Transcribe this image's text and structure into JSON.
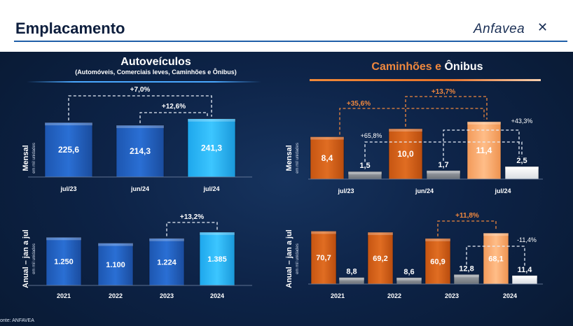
{
  "page": {
    "title": "Emplacamento",
    "logo": "Anfavea",
    "source": "onte: ANFAVEA"
  },
  "auto_panel": {
    "title": "Autoveículos",
    "subtitle": "(Automóveis, Comerciais leves, Caminhões e Ônibus)"
  },
  "cam_panel": {
    "title_part1": "Caminhões e",
    "title_part2": "Ônibus"
  },
  "row_labels": {
    "mensal": "Mensal",
    "anual": "Anual – jan a jul",
    "unit": "em mil unidades"
  },
  "colors": {
    "blue_dark": "#1f5fbf",
    "blue_light": "#22b8f5",
    "orange_dark": "#d7641c",
    "orange_light": "#f7ad74",
    "gray": "#8a8f96",
    "white_bar": "#f4f4f4"
  },
  "chart_data": [
    {
      "id": "auto_mensal",
      "type": "bar",
      "categories": [
        "jul/23",
        "jun/24",
        "jul/24"
      ],
      "values": [
        225.6,
        214.3,
        241.3
      ],
      "value_labels": [
        "225,6",
        "214,3",
        "241,3"
      ],
      "annotations": [
        "+7,0%",
        "+12,6%"
      ],
      "ylabel": "Mensal"
    },
    {
      "id": "auto_anual",
      "type": "bar",
      "categories": [
        "2021",
        "2022",
        "2023",
        "2024"
      ],
      "values": [
        1250,
        1100,
        1224,
        1385
      ],
      "value_labels": [
        "1.250",
        "1.100",
        "1.224",
        "1.385"
      ],
      "annotations": [
        "+13,2%"
      ],
      "ylabel": "Anual – jan a jul"
    },
    {
      "id": "cam_mensal",
      "type": "bar",
      "categories": [
        "jul/23",
        "jun/24",
        "jul/24"
      ],
      "series": [
        {
          "values": [
            8.4,
            10.0,
            11.4
          ],
          "value_labels": [
            "8,4",
            "10,0",
            "11,4"
          ]
        },
        {
          "values": [
            1.5,
            1.7,
            2.5
          ],
          "value_labels": [
            "1,5",
            "1,7",
            "2,5"
          ]
        }
      ],
      "annotations": [
        "+35,6%",
        "+13,7%",
        "+65,8%",
        "+43,3%"
      ],
      "ylabel": "Mensal"
    },
    {
      "id": "cam_anual",
      "type": "bar",
      "categories": [
        "2021",
        "2022",
        "2023",
        "2024"
      ],
      "series": [
        {
          "values": [
            70.7,
            69.2,
            60.9,
            68.1
          ],
          "value_labels": [
            "70,7",
            "69,2",
            "60,9",
            "68,1"
          ]
        },
        {
          "values": [
            8.8,
            8.6,
            12.8,
            11.4
          ],
          "value_labels": [
            "8,8",
            "8,6",
            "12,8",
            "11,4"
          ]
        }
      ],
      "annotations": [
        "+11,8%",
        "-11,4%"
      ],
      "ylabel": "Anual – jan a jul"
    }
  ]
}
